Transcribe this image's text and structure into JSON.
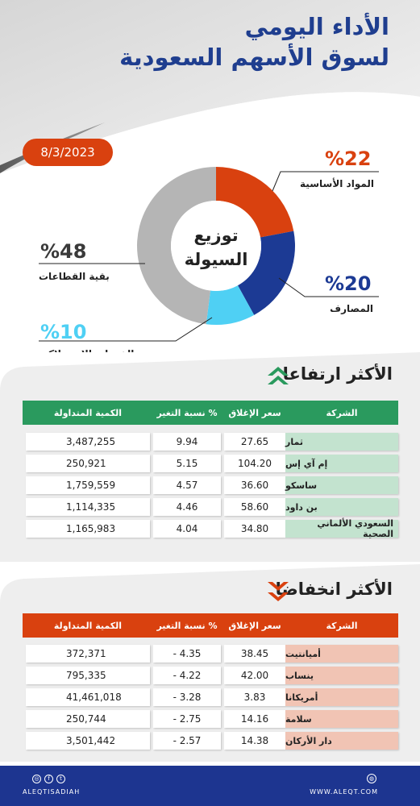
{
  "header": {
    "title_line1": "الأداء اليومي",
    "title_line2": "لسوق الأسهم السعودية",
    "date": "8/3/2023"
  },
  "liquidity": {
    "center_line1": "توزيع",
    "center_line2": "السيولة",
    "segments": [
      {
        "label": "المواد الأساسية",
        "pct_text": "%22",
        "value": 22,
        "color": "#d9410f"
      },
      {
        "label": "المصارف",
        "pct_text": "%20",
        "value": 20,
        "color": "#1c3a94"
      },
      {
        "label": "الخدمات الاستهلاكية",
        "pct_text": "%10",
        "value": 10,
        "color": "#4fd0f4"
      },
      {
        "label": "بقية القطاعات",
        "pct_text": "%48",
        "value": 48,
        "color": "#b5b5b5"
      }
    ]
  },
  "gainers": {
    "title": "الأكثر ارتفاعا",
    "header_color": "#2a9a5e",
    "name_bg": "#c3e3cf",
    "columns": [
      "الشركة",
      "سعر الإغلاق",
      "نسبة التغير %",
      "الكمية المتداولة"
    ],
    "rows": [
      {
        "name": "ثمار",
        "close": "27.65",
        "change": "9.94",
        "volume": "3,487,255"
      },
      {
        "name": "إم آي إس",
        "close": "104.20",
        "change": "5.15",
        "volume": "250,921"
      },
      {
        "name": "ساسكو",
        "close": "36.60",
        "change": "4.57",
        "volume": "1,759,559"
      },
      {
        "name": "بن داود",
        "close": "58.60",
        "change": "4.46",
        "volume": "1,114,335"
      },
      {
        "name": "السعودي الألماني الصحية",
        "close": "34.80",
        "change": "4.04",
        "volume": "1,165,983"
      }
    ]
  },
  "losers": {
    "title": "الأكثر انخفاضا",
    "header_color": "#d9410f",
    "name_bg": "#f1c4b4",
    "columns": [
      "الشركة",
      "سعر الإغلاق",
      "نسبة التغير %",
      "الكمية المتداولة"
    ],
    "rows": [
      {
        "name": "أميانتيت",
        "close": "38.45",
        "change": "- 4.35",
        "volume": "372,371"
      },
      {
        "name": "ينساب",
        "close": "42.00",
        "change": "- 4.22",
        "volume": "795,335"
      },
      {
        "name": "أمريكانا",
        "close": "3.83",
        "change": "- 3.28",
        "volume": "41,461,018"
      },
      {
        "name": "سلامة",
        "close": "14.16",
        "change": "- 2.75",
        "volume": "250,744"
      },
      {
        "name": "دار الأركان",
        "close": "14.38",
        "change": "- 2.57",
        "volume": "3,501,442"
      }
    ]
  },
  "footer": {
    "handle": "ALEQTISADIAH",
    "website": "WWW.ALEQT.COM",
    "social_icons": [
      "instagram-icon",
      "facebook-icon",
      "twitter-icon"
    ]
  }
}
